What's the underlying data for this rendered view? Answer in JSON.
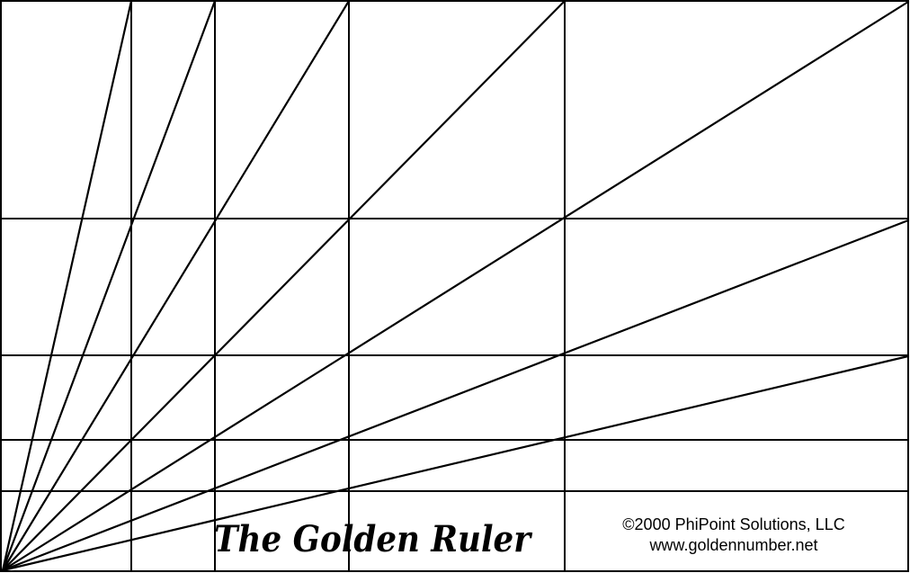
{
  "title": "The Golden Ruler",
  "copyright": "©2000 PhiPoint Solutions, LLC",
  "website": "www.goldennumber.net",
  "colors": {
    "line": "#000000",
    "background": "#ffffff"
  }
}
